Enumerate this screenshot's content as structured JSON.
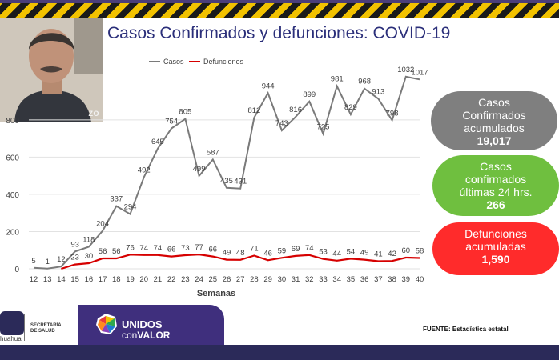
{
  "title": "Casos Confirmados y defunciones: COVID-19",
  "webcam": {
    "label": "ZO"
  },
  "colors": {
    "casos": "#7a7a7a",
    "defunciones": "#d60000",
    "title": "#2b2f7a",
    "grid": "#e2e2e2"
  },
  "chart_data": {
    "type": "line",
    "x": [
      12,
      13,
      14,
      15,
      16,
      17,
      18,
      19,
      20,
      21,
      22,
      23,
      24,
      25,
      26,
      27,
      28,
      29,
      30,
      31,
      32,
      33,
      34,
      35,
      36,
      37,
      38,
      39,
      40
    ],
    "xlabel": "Semanas",
    "ylabel": "",
    "ylim": [
      0,
      1100
    ],
    "yticks": [
      0,
      200,
      400,
      600,
      800
    ],
    "grid": true,
    "legend": "top-left",
    "series": [
      {
        "name": "Casos",
        "values": [
          5,
          1,
          12,
          93,
          118,
          204,
          337,
          294,
          492,
          645,
          754,
          805,
          499,
          587,
          435,
          431,
          812,
          944,
          743,
          816,
          899,
          725,
          981,
          829,
          968,
          913,
          798,
          1032,
          1017
        ]
      },
      {
        "name": "Defunciones",
        "values": [
          null,
          null,
          0,
          23,
          30,
          56,
          56,
          76,
          74,
          74,
          66,
          73,
          77,
          66,
          49,
          48,
          71,
          46,
          59,
          69,
          74,
          53,
          44,
          54,
          49,
          41,
          42,
          60,
          58
        ]
      }
    ]
  },
  "pills": {
    "accumulated_cases": {
      "line1": "Casos",
      "line2": "Confirmados",
      "line3": "acumulados",
      "value": "19,017",
      "color": "#7f7f7f"
    },
    "last24": {
      "line1": "Casos",
      "line2": "confirmados",
      "line3": "últimas 24 hrs.",
      "value": "266",
      "color": "#6fbf3f"
    },
    "deaths": {
      "line1": "Defunciones",
      "line2": "acumuladas",
      "value": "1,590",
      "color": "#ff2b2b"
    }
  },
  "footer": {
    "state": "huahua",
    "secretaria_1": "SECRETARÍA",
    "secretaria_2": "DE SALUD",
    "unidos_1": "UNIDOS",
    "unidos_2a": "con",
    "unidos_2b": "VALOR",
    "fuente": "FUENTE: Estadística estatal"
  }
}
